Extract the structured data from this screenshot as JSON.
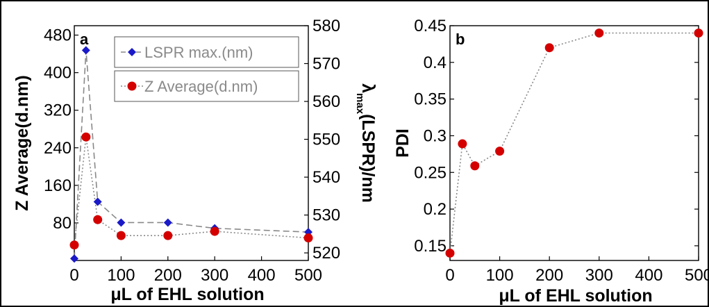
{
  "chart_data": [
    {
      "type": "line",
      "panel_label": "a",
      "xlabel": "μL of EHL solution",
      "ylabel_left": "Z Average(d.nm)",
      "ylabel_right_main": "λ",
      "ylabel_right_sub": "max",
      "ylabel_right_rest": "(LSPR)/nm",
      "xlim": [
        0,
        500
      ],
      "xticks": [
        0,
        100,
        200,
        300,
        400,
        500
      ],
      "ylim_left": [
        0,
        500
      ],
      "yticks_left": [
        80,
        160,
        240,
        320,
        400,
        480
      ],
      "ylim_right": [
        518,
        580
      ],
      "yticks_right": [
        520,
        530,
        540,
        550,
        560,
        570,
        580
      ],
      "legend_position": "top-right",
      "series": [
        {
          "name": "LSPR max.(nm)",
          "axis": "right",
          "marker": "diamond",
          "color": "#1a1ac8",
          "line_color": "#888888",
          "line_style": "dashed",
          "x": [
            0,
            25,
            50,
            100,
            200,
            300,
            500
          ],
          "y": [
            518.5,
            573.5,
            533.5,
            528.0,
            528.0,
            526.5,
            525.5
          ]
        },
        {
          "name": "Z Average(d.nm)",
          "axis": "left",
          "marker": "circle",
          "color": "#d40000",
          "line_color": "#888888",
          "line_style": "dotted",
          "x": [
            0,
            25,
            50,
            100,
            200,
            300,
            500
          ],
          "y": [
            33,
            263,
            87,
            53,
            53,
            62,
            48
          ]
        }
      ]
    },
    {
      "type": "line",
      "panel_label": "b",
      "xlabel": "μL of EHL solution",
      "ylabel": "PDI",
      "xlim": [
        0,
        500
      ],
      "xticks": [
        0,
        100,
        200,
        300,
        400,
        500
      ],
      "ylim": [
        0.13,
        0.45
      ],
      "yticks": [
        0.15,
        0.2,
        0.25,
        0.3,
        0.35,
        0.4,
        0.45
      ],
      "ytick_labels": [
        "0.15",
        "0.2",
        "0.25",
        "0.3",
        "0.35",
        "0.4",
        "0.45"
      ],
      "series": [
        {
          "marker": "circle",
          "color": "#d40000",
          "line_color": "#888888",
          "line_style": "dotted",
          "x": [
            0,
            25,
            50,
            100,
            200,
            300,
            500
          ],
          "y": [
            0.14,
            0.289,
            0.259,
            0.279,
            0.42,
            0.44,
            0.44
          ]
        }
      ]
    }
  ]
}
